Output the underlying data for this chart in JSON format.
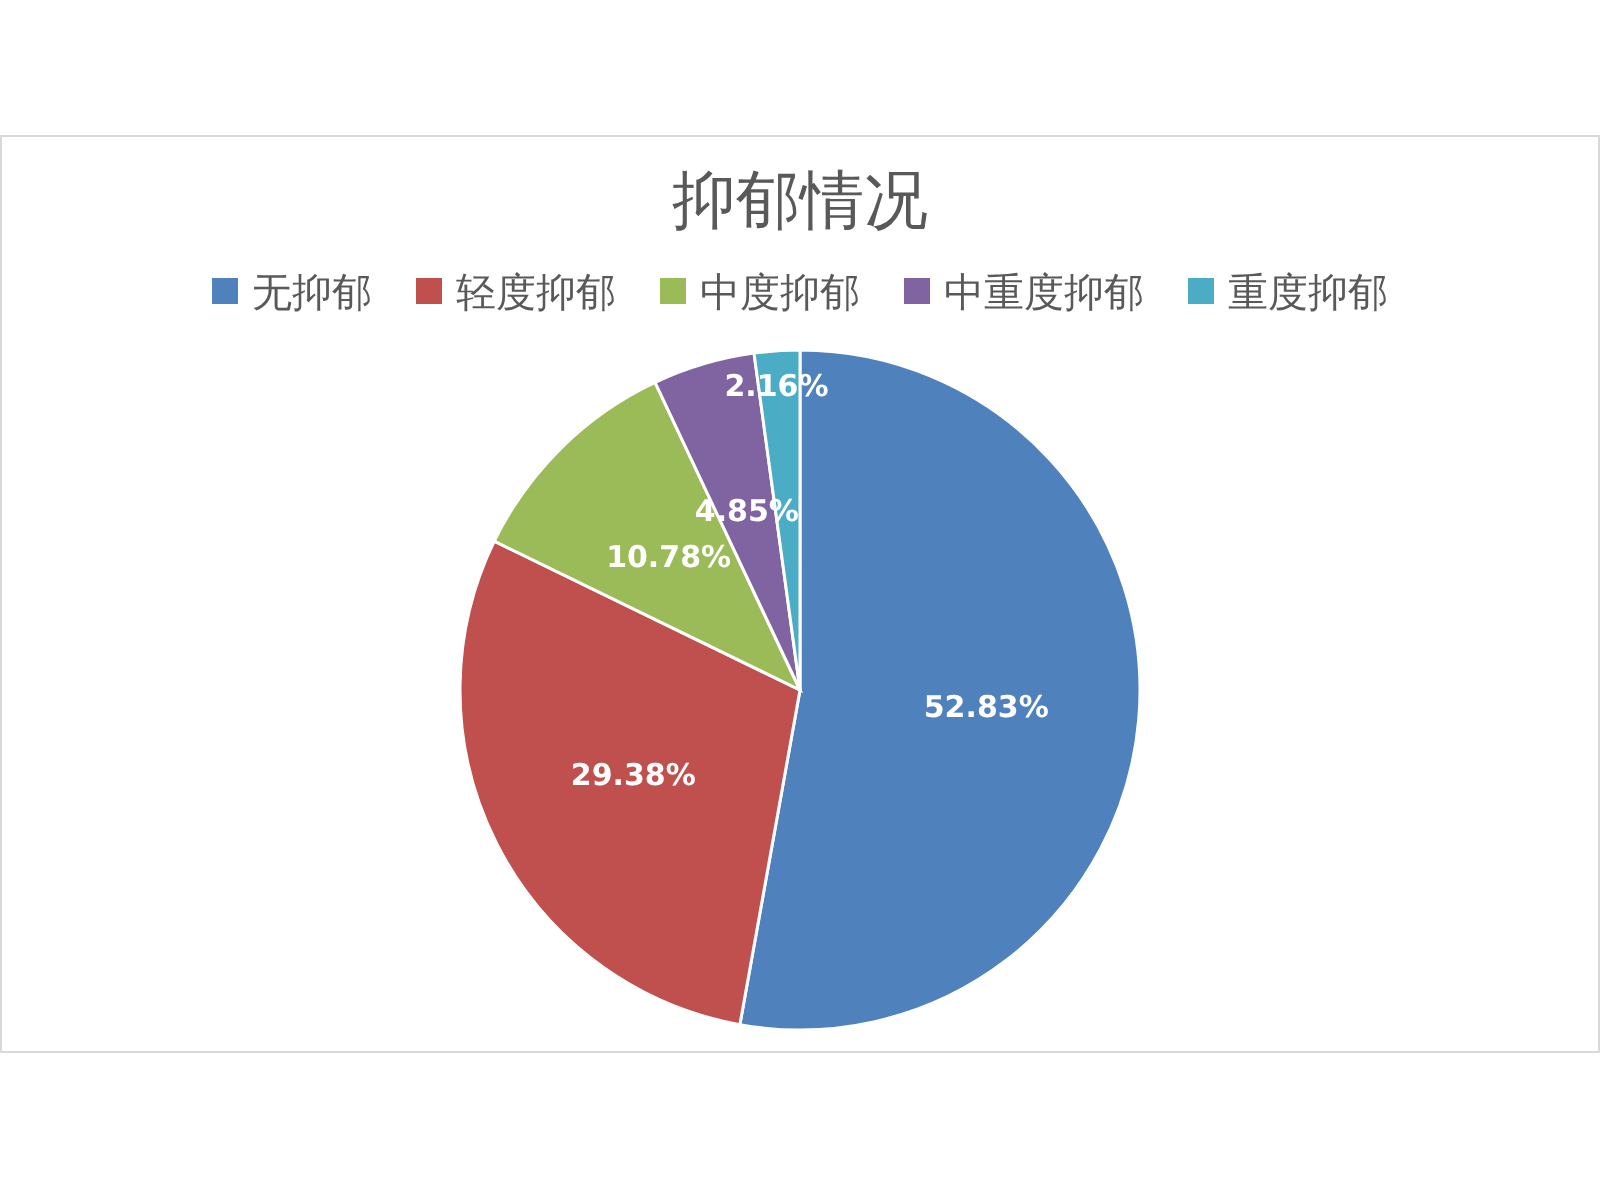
{
  "chart_data": {
    "type": "pie",
    "title": "抑郁情况",
    "categories": [
      "无抑郁",
      "轻度抑郁",
      "中度抑郁",
      "中重度抑郁",
      "重度抑郁"
    ],
    "values": [
      52.83,
      29.38,
      10.78,
      4.85,
      2.16
    ],
    "colors": [
      "#4f81bd",
      "#c0504d",
      "#9bbb59",
      "#8064a2",
      "#4bacc6"
    ],
    "value_labels": [
      "52.83%",
      "29.38%",
      "10.78%",
      "4.85%",
      "2.16%"
    ],
    "legend": "top"
  }
}
